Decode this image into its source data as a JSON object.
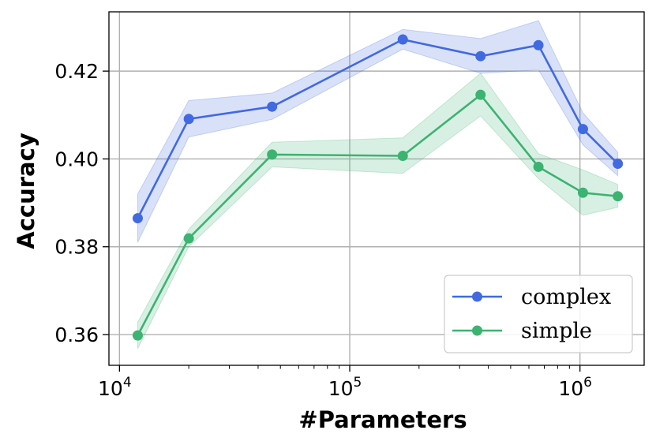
{
  "chart_data": {
    "type": "line",
    "xlabel": "#Parameters",
    "ylabel": "Accuracy",
    "xscale": "log",
    "xlim": [
      9000,
      1900000
    ],
    "ylim": [
      0.353,
      0.4335
    ],
    "x_ticks": [
      {
        "value": 10000,
        "base": "10",
        "exp": "4"
      },
      {
        "value": 100000,
        "base": "10",
        "exp": "5"
      },
      {
        "value": 1000000,
        "base": "10",
        "exp": "6"
      }
    ],
    "y_ticks": [
      {
        "value": 0.36,
        "label": "0.36"
      },
      {
        "value": 0.38,
        "label": "0.38"
      },
      {
        "value": 0.4,
        "label": "0.40"
      },
      {
        "value": 0.42,
        "label": "0.42"
      }
    ],
    "grid": true,
    "legend_position": "lower-right",
    "x": [
      12000,
      20000,
      46000,
      170000,
      370000,
      660000,
      1030000,
      1460000
    ],
    "series": [
      {
        "name": "complex",
        "color": "#4169e1",
        "values": [
          0.3865,
          0.4091,
          0.4119,
          0.4272,
          0.4234,
          0.4259,
          0.4068,
          0.3989
        ],
        "lower": [
          0.381,
          0.405,
          0.409,
          0.425,
          0.4195,
          0.4203,
          0.4032,
          0.3962
        ],
        "upper": [
          0.392,
          0.4133,
          0.415,
          0.4295,
          0.4274,
          0.4315,
          0.4105,
          0.4015
        ]
      },
      {
        "name": "simple",
        "color": "#3cb371",
        "values": [
          0.3598,
          0.3819,
          0.401,
          0.4007,
          0.4146,
          0.3982,
          0.3923,
          0.3915
        ],
        "lower": [
          0.3568,
          0.38,
          0.3982,
          0.3967,
          0.4098,
          0.3955,
          0.3872,
          0.389
        ],
        "upper": [
          0.3628,
          0.384,
          0.4038,
          0.4048,
          0.4195,
          0.4012,
          0.3975,
          0.3942
        ]
      }
    ]
  }
}
